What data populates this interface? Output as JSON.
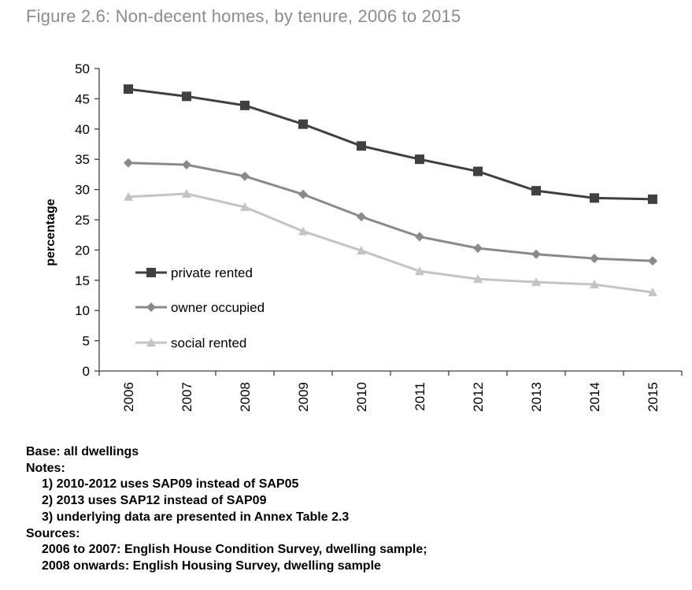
{
  "figure_title": "Figure 2.6: Non-decent homes, by tenure, 2006 to 2015",
  "chart_data": {
    "type": "line",
    "categories": [
      "2006",
      "2007",
      "2008",
      "2009",
      "2010",
      "2011",
      "2012",
      "2013",
      "2014",
      "2015"
    ],
    "series": [
      {
        "name": "private rented",
        "marker": "square",
        "color": "#404040",
        "values": [
          46.6,
          45.4,
          43.9,
          40.8,
          37.2,
          35.0,
          33.0,
          29.8,
          28.6,
          28.4
        ]
      },
      {
        "name": "owner occupied",
        "marker": "diamond",
        "color": "#8a8a8a",
        "values": [
          34.4,
          34.1,
          32.2,
          29.2,
          25.5,
          22.2,
          20.3,
          19.3,
          18.6,
          18.2
        ]
      },
      {
        "name": "social rented",
        "marker": "triangle",
        "color": "#c4c4c4",
        "values": [
          28.8,
          29.3,
          27.1,
          23.1,
          19.9,
          16.5,
          15.2,
          14.7,
          14.3,
          13.0
        ]
      }
    ],
    "ylabel": "percentage",
    "ylim": [
      0,
      50
    ],
    "yticks": [
      0,
      5,
      10,
      15,
      20,
      25,
      30,
      35,
      40,
      45,
      50
    ],
    "grid": false,
    "legend_position": "left"
  },
  "notes": {
    "base": "Base: all dwellings",
    "notes_heading": "Notes:",
    "items": [
      "1) 2010-2012 uses SAP09 instead of SAP05",
      "2) 2013 uses SAP12 instead of SAP09",
      "3) underlying data are presented in Annex Table 2.3"
    ],
    "sources_heading": "Sources:",
    "sources": [
      "2006 to 2007: English House Condition Survey, dwelling sample;",
      "2008 onwards: English Housing Survey, dwelling sample"
    ]
  }
}
